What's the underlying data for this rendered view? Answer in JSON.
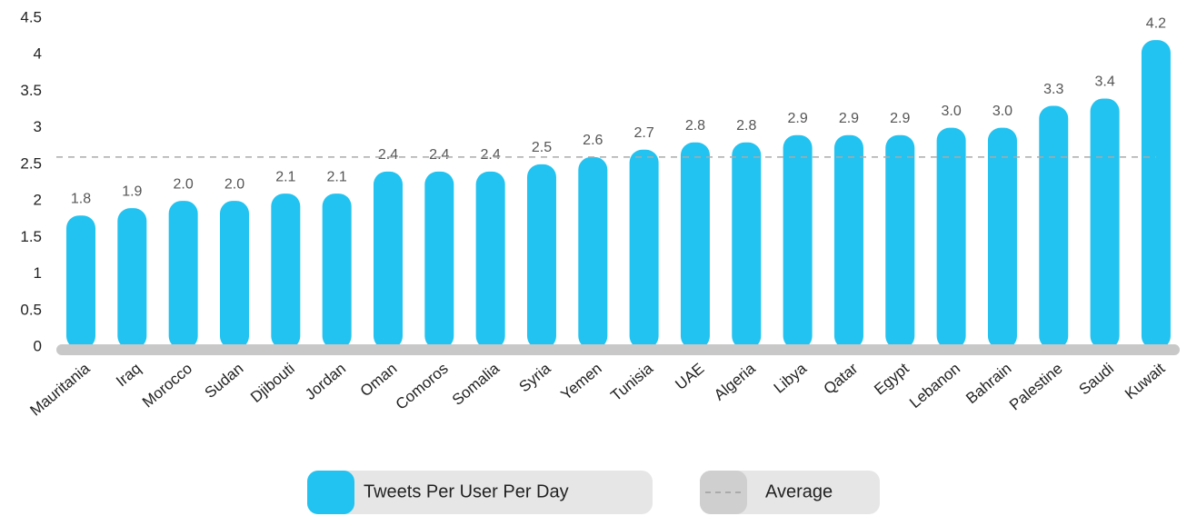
{
  "chart_data": {
    "type": "bar",
    "categories": [
      "Mauritania",
      "Iraq",
      "Morocco",
      "Sudan",
      "Djibouti",
      "Jordan",
      "Oman",
      "Comoros",
      "Somalia",
      "Syria",
      "Yemen",
      "Tunisia",
      "UAE",
      "Algeria",
      "Libya",
      "Qatar",
      "Egypt",
      "Lebanon",
      "Bahrain",
      "Palestine",
      "Saudi",
      "Kuwait"
    ],
    "series": [
      {
        "name": "Tweets Per User Per Day",
        "color": "#22c3f0",
        "values": [
          1.8,
          1.9,
          2,
          2,
          2.1,
          2.1,
          2.4,
          2.4,
          2.4,
          2.5,
          2.6,
          2.7,
          2.8,
          2.8,
          2.9,
          2.9,
          2.9,
          3,
          3,
          3.3,
          3.4,
          4.2
        ],
        "value_labels": [
          "1.8",
          "1.9",
          "2.0",
          "2.0",
          "2.1",
          "2.1",
          "2.4",
          "2.4",
          "2.4",
          "2.5",
          "2.6",
          "2.7",
          "2.8",
          "2.8",
          "2.9",
          "2.9",
          "2.9",
          "3.0",
          "3.0",
          "3.3",
          "3.4",
          "4.2"
        ]
      },
      {
        "name": "Average",
        "type": "line",
        "color": "#aaaaaa",
        "dashed": true,
        "value": 2.6
      }
    ],
    "ylim": [
      0,
      4.5
    ],
    "yticks": [
      0,
      0.5,
      1,
      1.5,
      2,
      2.5,
      3,
      3.5,
      4,
      4.5
    ]
  }
}
